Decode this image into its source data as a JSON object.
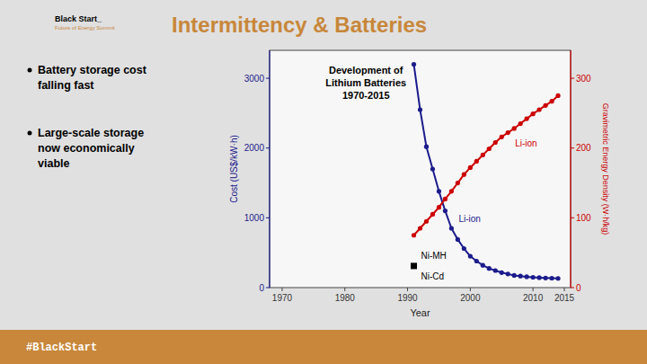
{
  "page": {
    "title": "Intermittency & Batteries",
    "logo": [
      "Black Start_",
      "Future of Energy Summit"
    ],
    "bullets": [
      "Battery storage cost\nfalling fast",
      "Large-scale storage\nnow economically\nviable"
    ],
    "footer": "#BlackStart"
  },
  "chart_data": {
    "type": "line",
    "title": "Development of\nLithium Batteries\n1970-2015",
    "x_label": "Year",
    "y_label": "Cost (US$/kW·h)",
    "y2_label": "Gravimetric Energy Density (W·h/kg)",
    "xlim": [
      1968,
      2016
    ],
    "xticks": [
      1970,
      1980,
      1990,
      2000,
      2010,
      2015
    ],
    "ylim": [
      0,
      3400
    ],
    "yticks": [
      0,
      1000,
      2000,
      3000
    ],
    "y2lim": [
      0,
      340
    ],
    "y2ticks": [
      0,
      100,
      200,
      300
    ],
    "grid": false,
    "series": [
      {
        "color": "#1C1C8C",
        "marker": "circle",
        "x": [
          1991,
          1992,
          1993,
          1994,
          1995,
          1996,
          1997,
          1998,
          1999,
          2000,
          2001,
          2002,
          2003,
          2004,
          2005,
          2006,
          2007,
          2008,
          2009,
          2010,
          2011,
          2012,
          2013,
          2014
        ],
        "values": [
          3200,
          2550,
          2020,
          1700,
          1380,
          1100,
          850,
          690,
          560,
          450,
          380,
          320,
          275,
          245,
          215,
          195,
          175,
          165,
          155,
          148,
          143,
          138,
          135,
          132
        ]
      },
      {
        "color": "#CC0000",
        "marker": "circle",
        "axis": "y2",
        "x": [
          1991,
          1992,
          1993,
          1994,
          1995,
          1996,
          1997,
          1998,
          1999,
          2000,
          2001,
          2002,
          2003,
          2004,
          2005,
          2006,
          2007,
          2008,
          2009,
          2010,
          2011,
          2012,
          2013,
          2014
        ],
        "values": [
          75,
          85,
          95,
          105,
          115,
          127,
          138,
          150,
          162,
          172,
          181,
          190,
          199,
          208,
          216,
          222,
          228,
          235,
          242,
          249,
          255,
          261,
          267,
          275
        ]
      },
      {
        "type": "scatter",
        "color": "black",
        "marker": "square",
        "x": [
          1991
        ],
        "values": [
          310
        ]
      }
    ],
    "annotations": [
      {
        "text": "Li-ion",
        "series": 0,
        "index": 6
      },
      {
        "text": "Li-ion",
        "series": 1,
        "index": 15
      },
      {
        "text": "Ni-MH",
        "series": 2,
        "index": 0
      },
      {
        "text": "Ni-Cd",
        "series": 2,
        "index": 0
      }
    ]
  }
}
